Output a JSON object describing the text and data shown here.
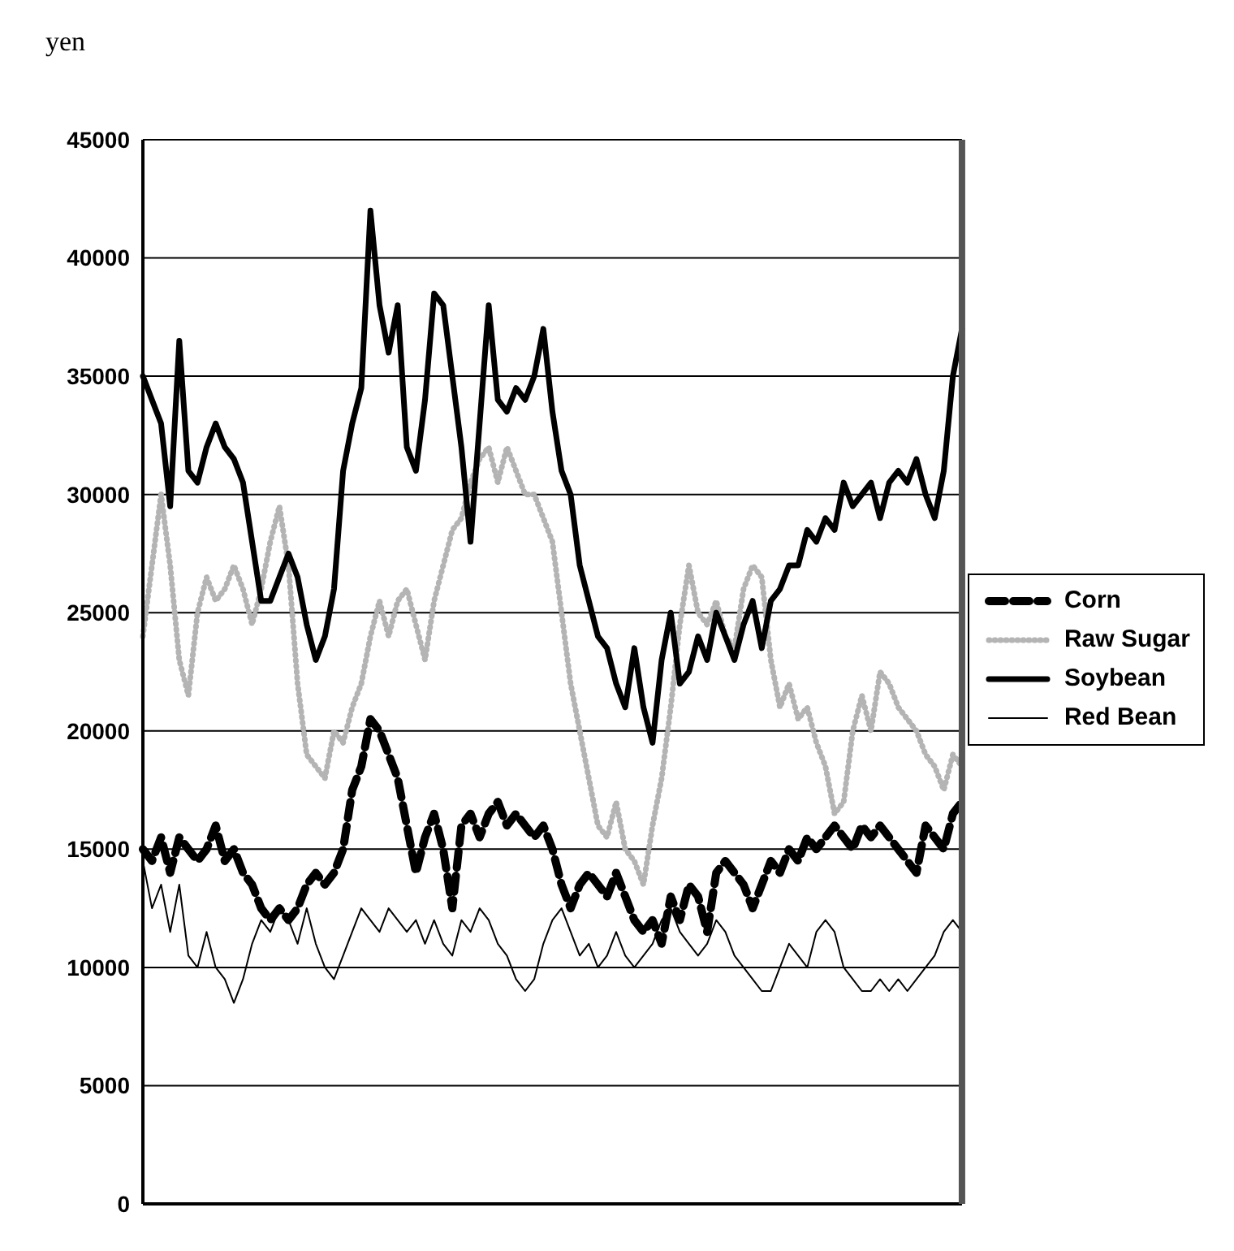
{
  "chart_data": {
    "type": "line",
    "ylabel": "yen",
    "categories": [
      null,
      null,
      null,
      null,
      null,
      null,
      null,
      null,
      null,
      null,
      null,
      null,
      null,
      null,
      null,
      null,
      null,
      null,
      null,
      null,
      null,
      null,
      null,
      null,
      null,
      null,
      null,
      null,
      null,
      null,
      null,
      null,
      null,
      null,
      null,
      null,
      null,
      null,
      null,
      null,
      null,
      null,
      null,
      null,
      null,
      null,
      null,
      null,
      null,
      null,
      null,
      null,
      null,
      null,
      null,
      null,
      null,
      null,
      null,
      null,
      null,
      null,
      null,
      null,
      null,
      null,
      null,
      null,
      null,
      null,
      null,
      null,
      null,
      null,
      null,
      null,
      null,
      null,
      null,
      null,
      null,
      null,
      null,
      null,
      null,
      null,
      null,
      null,
      null,
      null,
      null
    ],
    "series": [
      {
        "name": "Corn",
        "color": "#000000",
        "line_style": "dashed",
        "values": [
          15000,
          14500,
          15500,
          14000,
          15500,
          15000,
          14500,
          15000,
          16000,
          14500,
          15000,
          14000,
          13500,
          12500,
          12000,
          12500,
          12000,
          12500,
          13500,
          14000,
          13500,
          14000,
          15000,
          17500,
          18500,
          20500,
          20000,
          19000,
          18000,
          16000,
          14000,
          15500,
          16500,
          15000,
          12500,
          16000,
          16500,
          15500,
          16500,
          17000,
          16000,
          16500,
          16000,
          15500,
          16000,
          15000,
          13500,
          12500,
          13500,
          14000,
          13500,
          13000,
          14000,
          13000,
          12000,
          11500,
          12000,
          11000,
          13000,
          12000,
          13500,
          13000,
          11500,
          14000,
          14500,
          14000,
          13500,
          12500,
          13500,
          14500,
          14000,
          15000,
          14500,
          15500,
          15000,
          15500,
          16000,
          15500,
          15000,
          16000,
          15500,
          16000,
          15500,
          15000,
          14500,
          14000,
          16000,
          15500,
          15000,
          16500,
          17000
        ]
      },
      {
        "name": "Raw Sugar",
        "color": "#b4b4b4",
        "line_style": "dotted",
        "values": [
          24000,
          27000,
          30000,
          27000,
          23000,
          21500,
          25000,
          26500,
          25500,
          26000,
          27000,
          26000,
          24500,
          26000,
          28000,
          29500,
          27000,
          22000,
          19000,
          18500,
          18000,
          20000,
          19500,
          21000,
          22000,
          24000,
          25500,
          24000,
          25500,
          26000,
          24500,
          23000,
          25500,
          27000,
          28500,
          29000,
          30500,
          31500,
          32000,
          30500,
          32000,
          31000,
          30000,
          30000,
          29000,
          28000,
          25000,
          22000,
          20000,
          18000,
          16000,
          15500,
          17000,
          15000,
          14500,
          13500,
          16000,
          18000,
          21000,
          24500,
          27000,
          25000,
          24500,
          25500,
          24000,
          23500,
          26000,
          27000,
          26500,
          23000,
          21000,
          22000,
          20500,
          21000,
          19500,
          18500,
          16500,
          17000,
          20000,
          21500,
          20000,
          22500,
          22000,
          21000,
          20500,
          20000,
          19000,
          18500,
          17500,
          19000,
          18500
        ]
      },
      {
        "name": "Soybean",
        "color": "#000000",
        "line_style": "solid",
        "values": [
          35000,
          34000,
          33000,
          29500,
          36500,
          31000,
          30500,
          32000,
          33000,
          32000,
          31500,
          30500,
          28000,
          25500,
          25500,
          26500,
          27500,
          26500,
          24500,
          23000,
          24000,
          26000,
          31000,
          33000,
          34500,
          42000,
          38000,
          36000,
          38000,
          32000,
          31000,
          34000,
          38500,
          38000,
          35000,
          32000,
          28000,
          33000,
          38000,
          34000,
          33500,
          34500,
          34000,
          35000,
          37000,
          33500,
          31000,
          30000,
          27000,
          25500,
          24000,
          23500,
          22000,
          21000,
          23500,
          21000,
          19500,
          23000,
          25000,
          22000,
          22500,
          24000,
          23000,
          25000,
          24000,
          23000,
          24500,
          25500,
          23500,
          25500,
          26000,
          27000,
          27000,
          28500,
          28000,
          29000,
          28500,
          30500,
          29500,
          30000,
          30500,
          29000,
          30500,
          31000,
          30500,
          31500,
          30000,
          29000,
          31000,
          35000,
          37000
        ]
      },
      {
        "name": "Red Bean",
        "color": "#000000",
        "line_style": "solid",
        "values": [
          14500,
          12500,
          13500,
          11500,
          13500,
          10500,
          10000,
          11500,
          10000,
          9500,
          8500,
          9500,
          11000,
          12000,
          11500,
          12500,
          12000,
          11000,
          12500,
          11000,
          10000,
          9500,
          10500,
          11500,
          12500,
          12000,
          11500,
          12500,
          12000,
          11500,
          12000,
          11000,
          12000,
          11000,
          10500,
          12000,
          11500,
          12500,
          12000,
          11000,
          10500,
          9500,
          9000,
          9500,
          11000,
          12000,
          12500,
          11500,
          10500,
          11000,
          10000,
          10500,
          11500,
          10500,
          10000,
          10500,
          11000,
          12000,
          12500,
          11500,
          11000,
          10500,
          11000,
          12000,
          11500,
          10500,
          10000,
          9500,
          9000,
          9000,
          10000,
          11000,
          10500,
          10000,
          11500,
          12000,
          11500,
          10000,
          9500,
          9000,
          9000,
          9500,
          9000,
          9500,
          9000,
          9500,
          10000,
          10500,
          11500,
          12000,
          11500
        ]
      }
    ],
    "ylim": [
      0,
      45000
    ],
    "yticks": [
      0,
      5000,
      10000,
      15000,
      20000,
      25000,
      30000,
      35000,
      40000,
      45000
    ],
    "grid": "y",
    "legend": "right",
    "tick_labels": "y",
    "marker": "none"
  }
}
